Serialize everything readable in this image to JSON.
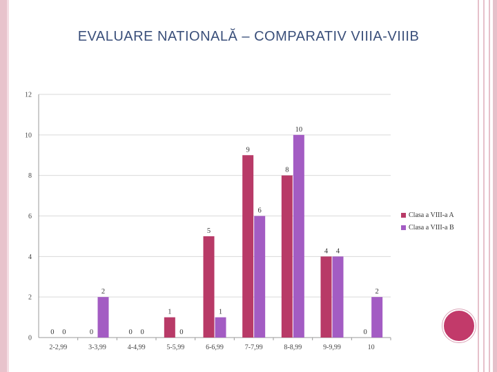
{
  "slide": {
    "title_main": "EVALUARE NATIONALĂ – COMPARATIV VIIIA-VIIIB"
  },
  "colors": {
    "series_a": "#b83a67",
    "series_b": "#a35cc3",
    "title": "#3a4f7a",
    "accent_dot": "#c23a6a"
  },
  "chart_data": {
    "type": "bar",
    "title": "",
    "xlabel": "",
    "ylabel": "",
    "ylim": [
      0,
      12
    ],
    "yticks": [
      0,
      2,
      4,
      6,
      8,
      10,
      12
    ],
    "grid": true,
    "legend_position": "right",
    "categories": [
      "2-2,99",
      "3-3,99",
      "4-4,99",
      "5-5,99",
      "6-6,99",
      "7-7,99",
      "8-8,99",
      "9-9,99",
      "10"
    ],
    "series": [
      {
        "name": "Clasa a VIII-a A",
        "values": [
          0,
          0,
          0,
          1,
          5,
          9,
          8,
          4,
          0
        ]
      },
      {
        "name": "Clasa a VIII-a B",
        "values": [
          0,
          2,
          0,
          0,
          1,
          6,
          10,
          4,
          2
        ]
      }
    ]
  }
}
